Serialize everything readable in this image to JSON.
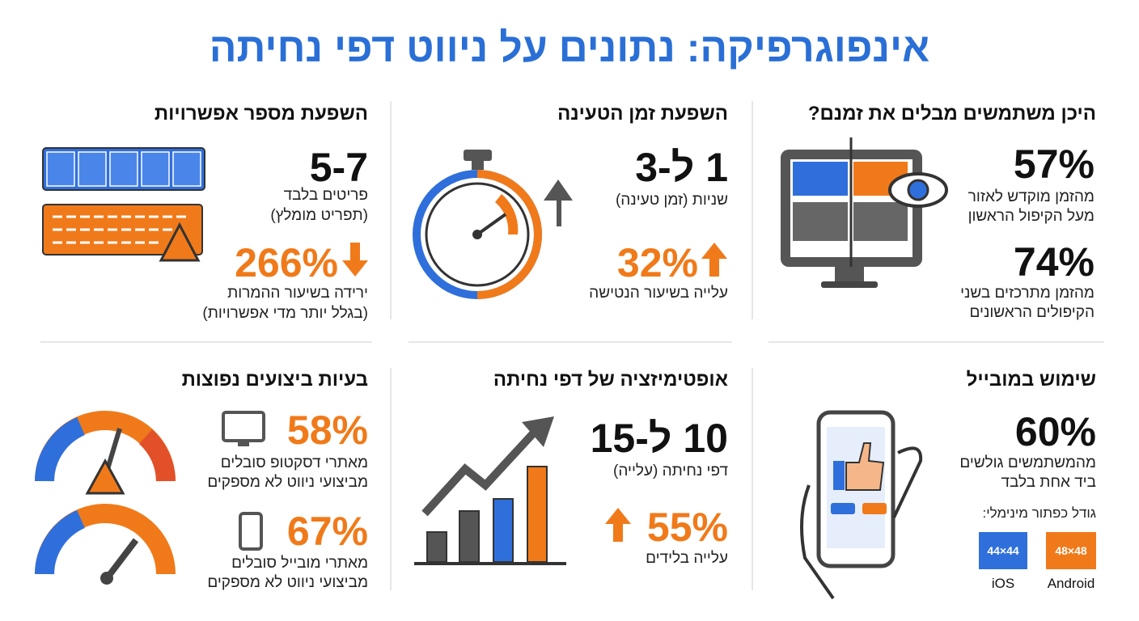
{
  "title": "אינפוגרפיקה: נתונים על ניווט דפי נחיתה",
  "panels": [
    {
      "heading": "היכן משתמשים מבלים את זמנם?",
      "stats": [
        {
          "value": "57%",
          "lines": [
            "מהזמן מוקדש לאזור",
            "מעל הקיפול הראשון"
          ]
        },
        {
          "value": "74%",
          "lines": [
            "מהזמן מתרכזים בשני",
            "הקיפולים הראשונים"
          ]
        }
      ]
    },
    {
      "heading": "השפעת זמן הטעינה",
      "stats": [
        {
          "value": "1 ל-3",
          "lines": [
            "שניות (זמן טעינה)"
          ]
        },
        {
          "value": "32%",
          "lines": [
            "עלייה בשיעור הנטישה"
          ]
        }
      ]
    },
    {
      "heading": "השפעת מספר אפשרויות",
      "stats": [
        {
          "value": "5-7",
          "lines": [
            "פריטים בלבד",
            "(תפריט מומלץ)"
          ]
        },
        {
          "value": "266%",
          "lines": [
            "ירידה בשיעור ההמרות",
            "(בגלל יותר מדי אפשרויות)"
          ]
        }
      ]
    },
    {
      "heading": "שימוש במובייל",
      "stats": [
        {
          "value": "60%",
          "lines": [
            "מהמשתמשים גולשים",
            "ביד אחת בלבד"
          ]
        }
      ],
      "button_sizes": {
        "label": "גודל כפתור מינימלי:",
        "items": [
          {
            "size": "48×48",
            "platform": "Android"
          },
          {
            "size": "44×44",
            "platform": "iOS"
          }
        ]
      }
    },
    {
      "heading": "אופטימיזציה של דפי נחיתה",
      "stats": [
        {
          "value": "10 ל-15",
          "lines": [
            "דפי נחיתה (עלייה)"
          ]
        },
        {
          "value": "55%",
          "lines": [
            "עלייה בלידים"
          ]
        }
      ]
    },
    {
      "heading": "בעיות ביצועים נפוצות",
      "stats": [
        {
          "value": "58%",
          "lines": [
            "מאתרי דסקטופ סובלים",
            "מביצועי ניווט לא מספקים"
          ]
        },
        {
          "value": "67%",
          "lines": [
            "מאתרי מובייל סובלים",
            "מביצועי ניווט לא מספקים"
          ]
        }
      ]
    }
  ]
}
